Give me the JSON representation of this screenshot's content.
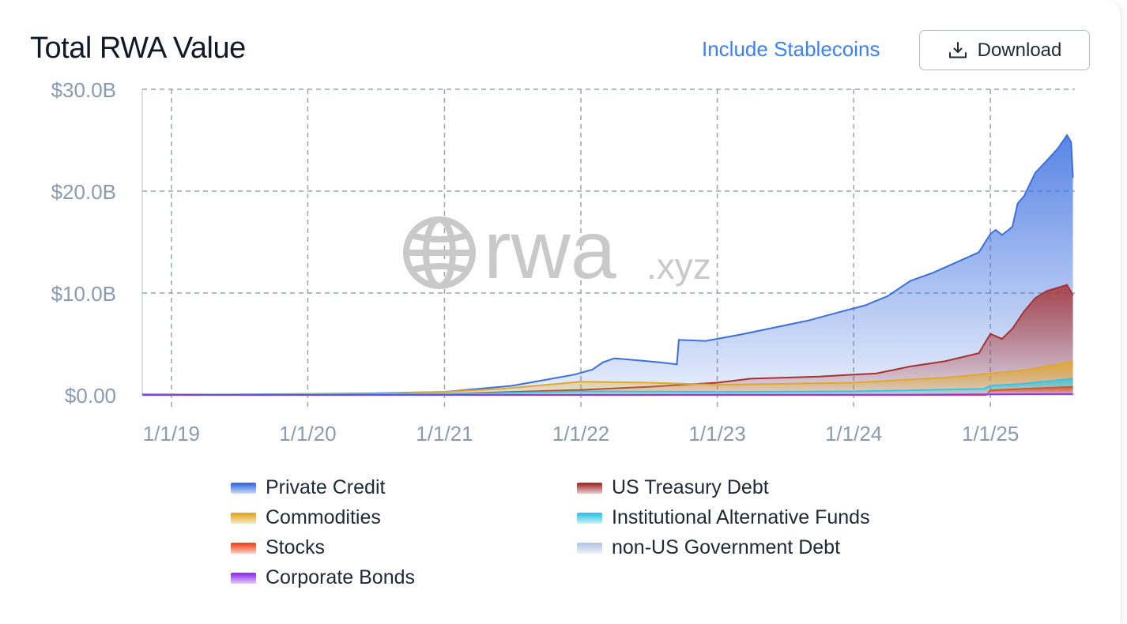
{
  "header": {
    "title": "Total RWA Value",
    "toggle_label": "Include Stablecoins",
    "download_label": "Download"
  },
  "watermark": {
    "brand": "rwa",
    "suffix": ".xyz"
  },
  "legend": [
    {
      "name": "Private Credit",
      "color": "#3b6fe0"
    },
    {
      "name": "US Treasury Debt",
      "color": "#a83232"
    },
    {
      "name": "Commodities",
      "color": "#e0a92a"
    },
    {
      "name": "Institutional Alternative Funds",
      "color": "#35c6e6"
    },
    {
      "name": "Stocks",
      "color": "#ef4a25"
    },
    {
      "name": "non-US Government Debt",
      "color": "#b8c7e6"
    },
    {
      "name": "Corporate Bonds",
      "color": "#9333ea"
    }
  ],
  "chart_data": {
    "type": "area",
    "title": "Total RWA Value",
    "xlabel": "",
    "ylabel": "",
    "x_ticks": [
      "1/1/19",
      "1/1/20",
      "1/1/21",
      "1/1/22",
      "1/1/23",
      "1/1/24",
      "1/1/25"
    ],
    "y_ticks": [
      "$0.00",
      "$10.0B",
      "$20.0B",
      "$30.0B"
    ],
    "ylim": [
      0,
      30
    ],
    "x_range": [
      "2018-10-15",
      "2025-08-15"
    ],
    "grid": true,
    "legend_position": "bottom",
    "series": [
      {
        "name": "Private Credit",
        "color": "#3b6fe0",
        "points": [
          [
            "2018-10-15",
            0.05
          ],
          [
            "2019-06-01",
            0.05
          ],
          [
            "2020-01-01",
            0.1
          ],
          [
            "2020-06-01",
            0.15
          ],
          [
            "2021-01-01",
            0.3
          ],
          [
            "2021-04-01",
            0.6
          ],
          [
            "2021-07-01",
            0.9
          ],
          [
            "2021-10-01",
            1.5
          ],
          [
            "2021-12-15",
            2.0
          ],
          [
            "2022-02-01",
            2.5
          ],
          [
            "2022-03-01",
            3.2
          ],
          [
            "2022-04-01",
            3.6
          ],
          [
            "2022-06-01",
            3.4
          ],
          [
            "2022-08-01",
            3.2
          ],
          [
            "2022-09-15",
            3.0
          ],
          [
            "2022-09-20",
            5.4
          ],
          [
            "2022-12-01",
            5.3
          ],
          [
            "2023-03-01",
            5.9
          ],
          [
            "2023-06-01",
            6.6
          ],
          [
            "2023-09-01",
            7.3
          ],
          [
            "2023-12-01",
            8.2
          ],
          [
            "2024-02-01",
            8.8
          ],
          [
            "2024-04-01",
            9.7
          ],
          [
            "2024-06-01",
            11.2
          ],
          [
            "2024-08-01",
            12.0
          ],
          [
            "2024-10-01",
            13.0
          ],
          [
            "2024-12-01",
            14.0
          ],
          [
            "2025-01-01",
            15.8
          ],
          [
            "2025-01-15",
            16.2
          ],
          [
            "2025-02-01",
            15.7
          ],
          [
            "2025-03-01",
            16.5
          ],
          [
            "2025-03-15",
            18.8
          ],
          [
            "2025-04-01",
            19.5
          ],
          [
            "2025-05-01",
            21.8
          ],
          [
            "2025-06-01",
            23.0
          ],
          [
            "2025-07-01",
            24.2
          ],
          [
            "2025-07-25",
            25.5
          ],
          [
            "2025-08-05",
            24.8
          ],
          [
            "2025-08-10",
            21.3
          ]
        ]
      },
      {
        "name": "US Treasury Debt",
        "color": "#a83232",
        "points": [
          [
            "2018-10-15",
            0.0
          ],
          [
            "2021-01-01",
            0.1
          ],
          [
            "2022-01-01",
            0.5
          ],
          [
            "2022-07-01",
            0.8
          ],
          [
            "2023-01-01",
            1.2
          ],
          [
            "2023-04-01",
            1.6
          ],
          [
            "2023-10-01",
            1.8
          ],
          [
            "2024-01-01",
            2.0
          ],
          [
            "2024-03-01",
            2.1
          ],
          [
            "2024-06-01",
            2.8
          ],
          [
            "2024-09-01",
            3.3
          ],
          [
            "2024-12-01",
            4.1
          ],
          [
            "2025-01-01",
            6.0
          ],
          [
            "2025-02-01",
            5.5
          ],
          [
            "2025-03-01",
            6.5
          ],
          [
            "2025-04-01",
            8.2
          ],
          [
            "2025-05-01",
            9.5
          ],
          [
            "2025-06-01",
            10.2
          ],
          [
            "2025-07-25",
            10.8
          ],
          [
            "2025-08-10",
            9.8
          ]
        ]
      },
      {
        "name": "Commodities",
        "color": "#e0a92a",
        "points": [
          [
            "2018-10-15",
            0.0
          ],
          [
            "2020-06-01",
            0.1
          ],
          [
            "2021-01-01",
            0.3
          ],
          [
            "2021-06-01",
            0.6
          ],
          [
            "2022-01-01",
            1.3
          ],
          [
            "2022-07-01",
            1.2
          ],
          [
            "2023-01-01",
            1.0
          ],
          [
            "2024-01-01",
            1.2
          ],
          [
            "2024-09-01",
            1.7
          ],
          [
            "2025-01-01",
            2.1
          ],
          [
            "2025-04-01",
            2.4
          ],
          [
            "2025-08-10",
            3.3
          ]
        ]
      },
      {
        "name": "Institutional Alternative Funds",
        "color": "#35c6e6",
        "points": [
          [
            "2018-10-15",
            0.0
          ],
          [
            "2021-01-01",
            0.1
          ],
          [
            "2022-01-01",
            0.35
          ],
          [
            "2023-01-01",
            0.3
          ],
          [
            "2024-01-01",
            0.35
          ],
          [
            "2024-12-15",
            0.6
          ],
          [
            "2025-01-01",
            0.9
          ],
          [
            "2025-04-01",
            1.1
          ],
          [
            "2025-08-10",
            1.6
          ]
        ]
      },
      {
        "name": "Stocks",
        "color": "#ef4a25",
        "points": [
          [
            "2018-10-15",
            0.0
          ],
          [
            "2024-12-20",
            0.0
          ],
          [
            "2025-01-01",
            0.45
          ],
          [
            "2025-04-01",
            0.6
          ],
          [
            "2025-08-10",
            0.8
          ]
        ]
      },
      {
        "name": "non-US Government Debt",
        "color": "#b8c7e6",
        "points": [
          [
            "2018-10-15",
            0.0
          ],
          [
            "2023-01-01",
            0.05
          ],
          [
            "2025-08-10",
            0.15
          ]
        ]
      },
      {
        "name": "Corporate Bonds",
        "color": "#9333ea",
        "points": [
          [
            "2018-10-15",
            0.0
          ],
          [
            "2024-06-01",
            0.02
          ],
          [
            "2025-08-10",
            0.1
          ]
        ]
      }
    ]
  }
}
